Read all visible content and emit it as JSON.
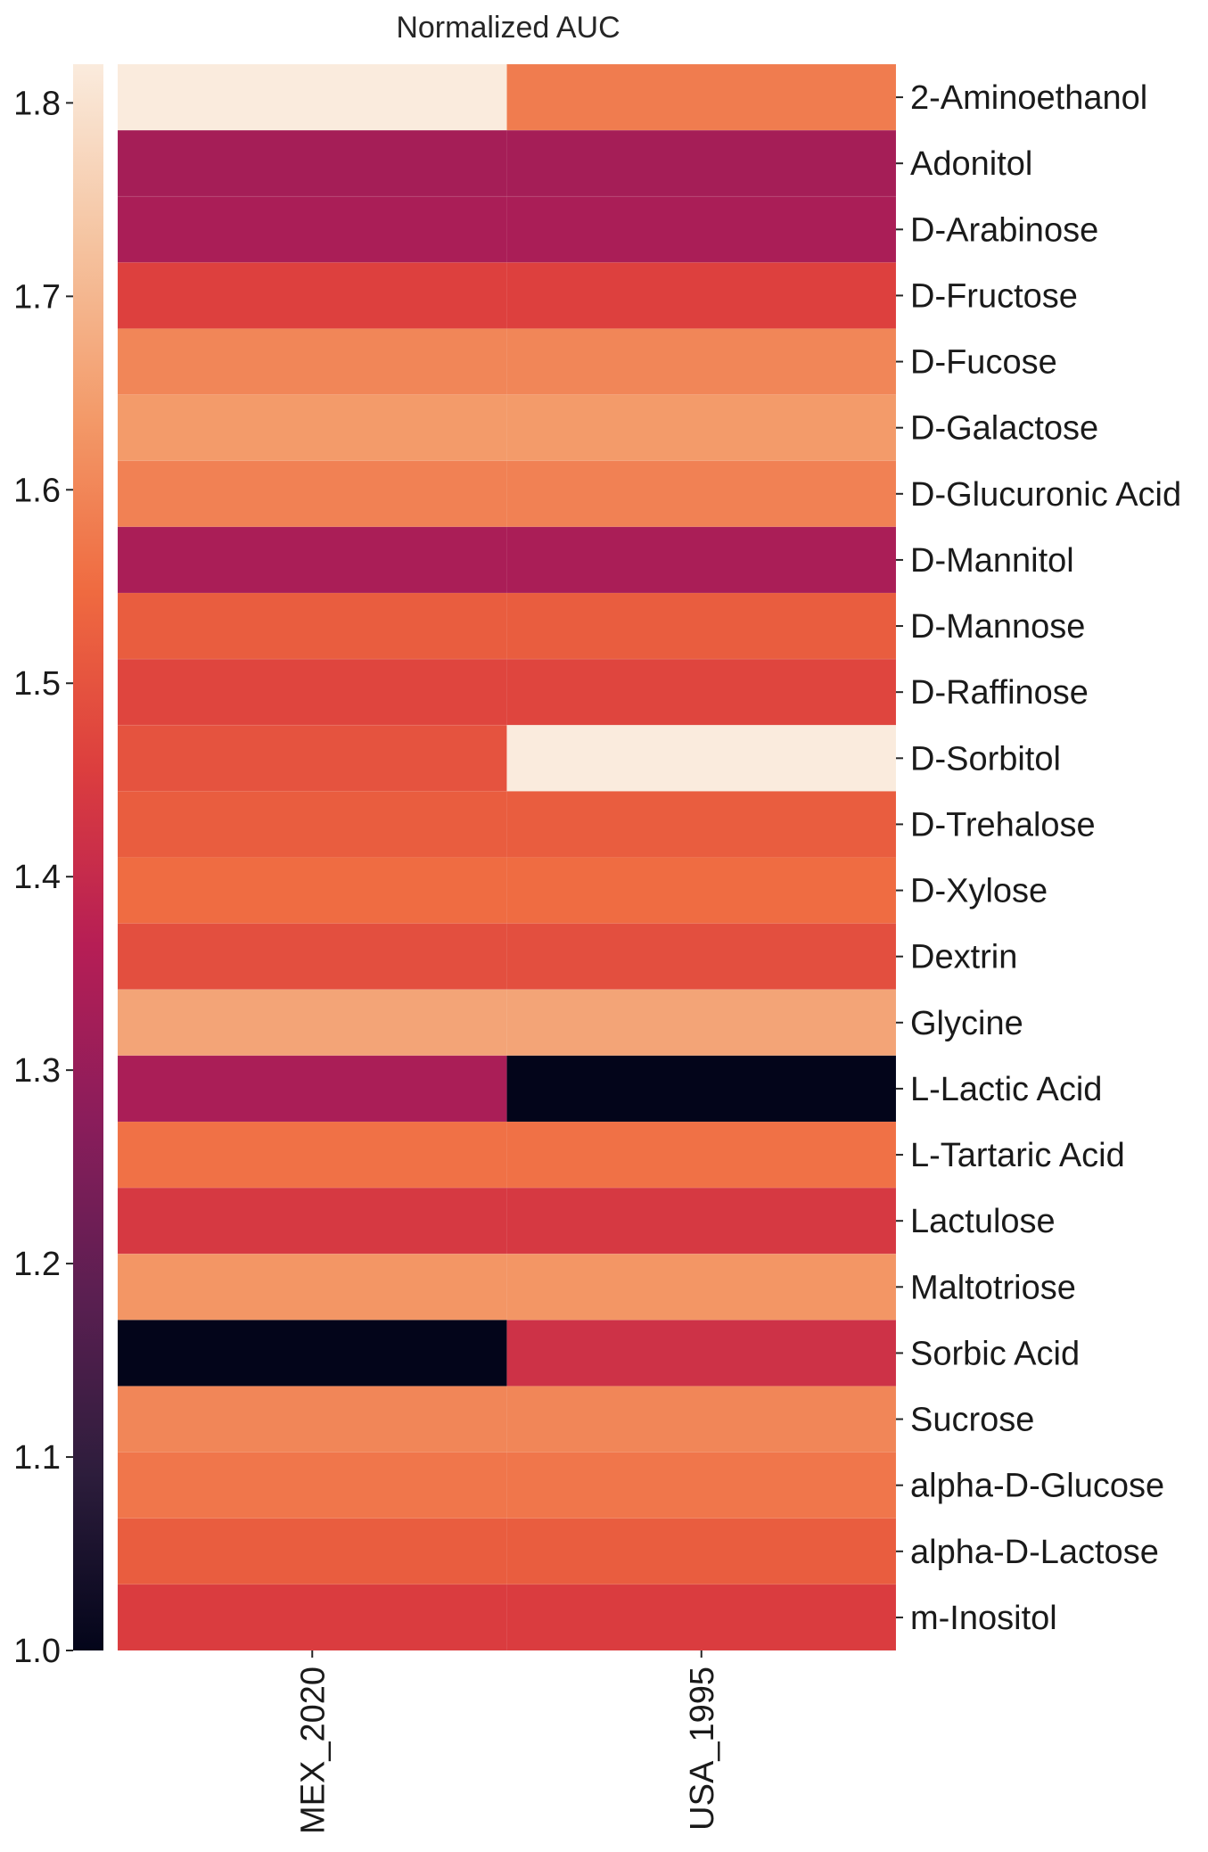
{
  "chart_data": {
    "type": "heatmap",
    "title": "Normalized AUC",
    "columns": [
      "MEX_2020",
      "USA_1995"
    ],
    "rows": [
      "2-Aminoethanol",
      "Adonitol",
      "D-Arabinose",
      "D-Fructose",
      "D-Fucose",
      "D-Galactose",
      "D-Glucuronic Acid",
      "D-Mannitol",
      "D-Mannose",
      "D-Raffinose",
      "D-Sorbitol",
      "D-Trehalose",
      "D-Xylose",
      "Dextrin",
      "Glycine",
      "L-Lactic Acid",
      "L-Tartaric Acid",
      "Lactulose",
      "Maltotriose",
      "Sorbic Acid",
      "Sucrose",
      "alpha-D-Glucose",
      "alpha-D-Lactose",
      "m-Inositol"
    ],
    "values": [
      [
        1.82,
        1.58
      ],
      [
        1.33,
        1.33
      ],
      [
        1.34,
        1.34
      ],
      [
        1.46,
        1.46
      ],
      [
        1.6,
        1.6
      ],
      [
        1.64,
        1.64
      ],
      [
        1.59,
        1.59
      ],
      [
        1.34,
        1.34
      ],
      [
        1.52,
        1.52
      ],
      [
        1.47,
        1.47
      ],
      [
        1.5,
        1.82
      ],
      [
        1.52,
        1.52
      ],
      [
        1.55,
        1.55
      ],
      [
        1.49,
        1.49
      ],
      [
        1.66,
        1.66
      ],
      [
        1.34,
        1.0
      ],
      [
        1.56,
        1.56
      ],
      [
        1.44,
        1.44
      ],
      [
        1.63,
        1.63
      ],
      [
        1.0,
        1.42
      ],
      [
        1.6,
        1.6
      ],
      [
        1.57,
        1.57
      ],
      [
        1.52,
        1.52
      ],
      [
        1.45,
        1.45
      ]
    ],
    "colorbar": {
      "min": 1.0,
      "max": 1.82,
      "ticks": [
        1.0,
        1.1,
        1.2,
        1.3,
        1.4,
        1.5,
        1.6,
        1.7,
        1.8
      ],
      "tick_labels": [
        "1.0",
        "1.1",
        "1.2",
        "1.3",
        "1.4",
        "1.5",
        "1.6",
        "1.7",
        "1.8"
      ],
      "position": "left"
    },
    "colormap": [
      "#03051a",
      "#2d1d3c",
      "#5a1f51",
      "#8a1d5b",
      "#b61e55",
      "#dc3e3e",
      "#ef6a40",
      "#f39a69",
      "#f5c4a1",
      "#faebdd"
    ]
  }
}
